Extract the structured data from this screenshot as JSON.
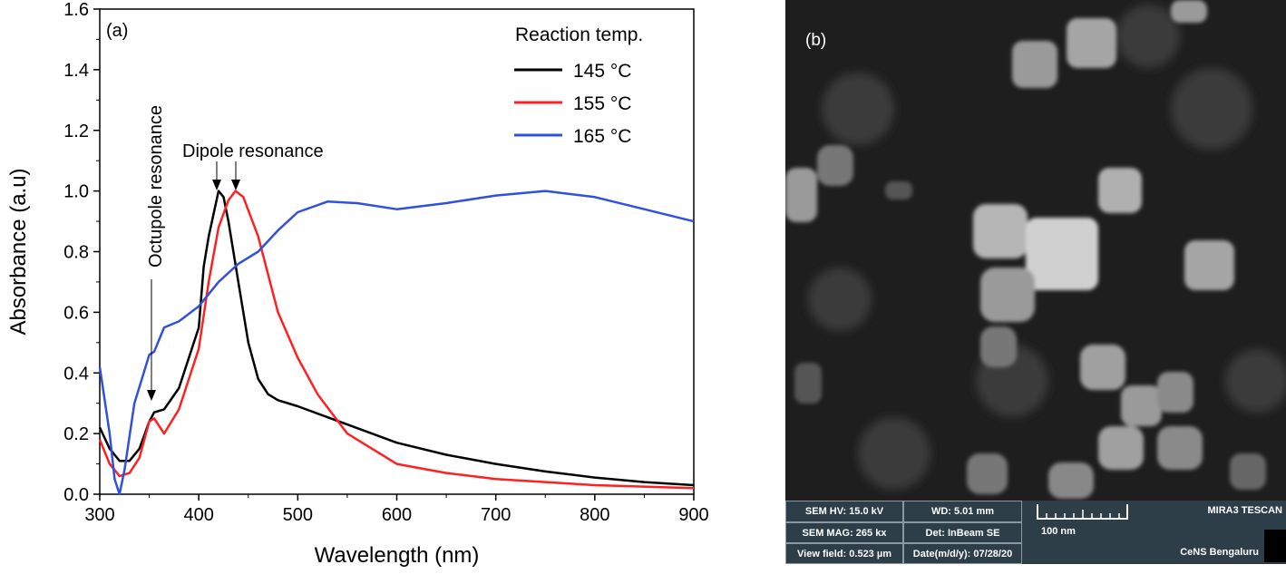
{
  "chart_data": {
    "type": "line",
    "panel_label": "(a)",
    "xlabel": "Wavelength (nm)",
    "ylabel": "Absorbance (a.u)",
    "xlim": [
      300,
      900
    ],
    "ylim": [
      0,
      1.6
    ],
    "xticks": [
      300,
      400,
      500,
      600,
      700,
      800,
      900
    ],
    "yticks": [
      "0.0",
      "0.2",
      "0.4",
      "0.6",
      "0.8",
      "1.0",
      "1.2",
      "1.4",
      "1.6"
    ],
    "grid": false,
    "legend": {
      "title": "Reaction temp.",
      "placement": "top-right"
    },
    "annotations": [
      "Octupole resonance",
      "Dipole resonance"
    ],
    "series": [
      {
        "name": "145 °C",
        "color": "#000000",
        "x": [
          300,
          310,
          320,
          330,
          340,
          350,
          355,
          365,
          380,
          400,
          405,
          410,
          420,
          425,
          430,
          440,
          450,
          460,
          470,
          480,
          500,
          550,
          600,
          650,
          700,
          750,
          800,
          850,
          900
        ],
        "y": [
          0.22,
          0.15,
          0.11,
          0.11,
          0.15,
          0.24,
          0.27,
          0.28,
          0.35,
          0.55,
          0.75,
          0.85,
          1.0,
          0.98,
          0.9,
          0.7,
          0.5,
          0.38,
          0.33,
          0.31,
          0.29,
          0.23,
          0.17,
          0.13,
          0.1,
          0.075,
          0.055,
          0.04,
          0.03
        ]
      },
      {
        "name": "155 °C",
        "color": "#ff2020",
        "x": [
          300,
          310,
          320,
          330,
          340,
          350,
          355,
          365,
          380,
          400,
          410,
          420,
          430,
          437,
          445,
          460,
          480,
          500,
          520,
          550,
          600,
          650,
          700,
          800,
          900
        ],
        "y": [
          0.18,
          0.1,
          0.06,
          0.07,
          0.12,
          0.24,
          0.25,
          0.2,
          0.28,
          0.48,
          0.7,
          0.88,
          0.97,
          1.0,
          0.98,
          0.85,
          0.6,
          0.45,
          0.33,
          0.2,
          0.1,
          0.07,
          0.05,
          0.03,
          0.02
        ]
      },
      {
        "name": "165 °C",
        "color": "#3050e0",
        "x": [
          300,
          310,
          315,
          320,
          325,
          335,
          350,
          355,
          365,
          380,
          400,
          420,
          440,
          460,
          480,
          500,
          530,
          560,
          600,
          650,
          700,
          750,
          800,
          850,
          900
        ],
        "y": [
          0.42,
          0.2,
          0.05,
          0.0,
          0.08,
          0.3,
          0.46,
          0.47,
          0.55,
          0.57,
          0.62,
          0.7,
          0.76,
          0.8,
          0.87,
          0.93,
          0.965,
          0.96,
          0.94,
          0.96,
          0.985,
          1.0,
          0.98,
          0.94,
          0.9
        ]
      }
    ]
  },
  "sem": {
    "panel_label": "(b)",
    "hv": "SEM HV: 15.0 kV",
    "wd": "WD: 5.01 mm",
    "mag": "SEM MAG: 265 kx",
    "det": "Det: InBeam SE",
    "view": "View field: 0.523 µm",
    "date": "Date(m/d/y): 07/28/20",
    "scale": "100 nm",
    "brand": "MIRA3 TESCAN",
    "lab": "CeNS Bengaluru"
  }
}
